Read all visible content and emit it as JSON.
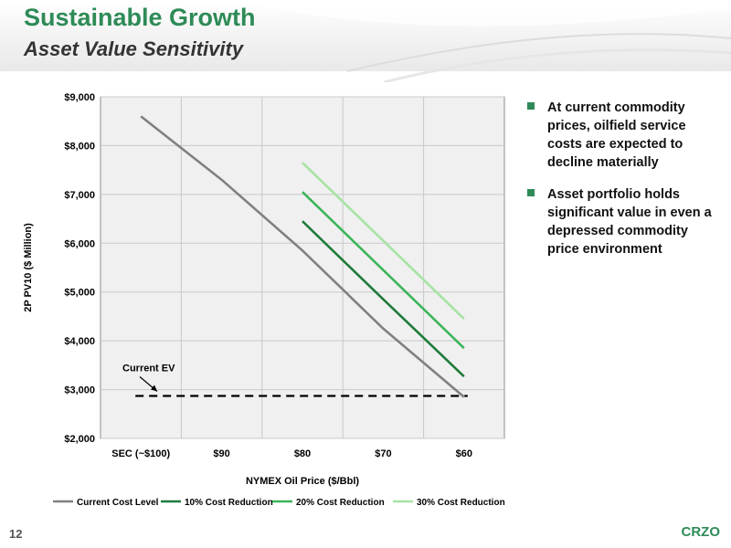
{
  "slide": {
    "title": "Sustainable Growth",
    "subtitle": "Asset Value Sensitivity",
    "page_number": "12",
    "brand": "CRZO",
    "bullets": [
      "At current commodity prices, oilfield service costs are expected to decline materially",
      "Asset portfolio holds significant value in even a depressed commodity price environment"
    ],
    "accent_color": "#2e8b57"
  },
  "chart_data": {
    "type": "line",
    "title": "",
    "xlabel": "NYMEX Oil Price ($/Bbl)",
    "ylabel": "2P PV10 ($ Million)",
    "categories": [
      "SEC (~$100)",
      "$90",
      "$80",
      "$70",
      "$60"
    ],
    "ylim": [
      2000,
      9000
    ],
    "yticks": [
      2000,
      3000,
      4000,
      5000,
      6000,
      7000,
      8000,
      9000
    ],
    "ytick_labels": [
      "$2,000",
      "$3,000",
      "$4,000",
      "$5,000",
      "$6,000",
      "$7,000",
      "$8,000",
      "$9,000"
    ],
    "grid": true,
    "legend_position": "bottom",
    "series": [
      {
        "name": "Current Cost Level",
        "color": "#808080",
        "values": [
          8600,
          7300,
          5850,
          4250,
          2850
        ]
      },
      {
        "name": "10% Cost Reduction",
        "color": "#1e7b3a",
        "values": [
          null,
          null,
          6450,
          4850,
          3270
        ]
      },
      {
        "name": "20% Cost Reduction",
        "color": "#3cb55a",
        "values": [
          null,
          null,
          7050,
          5450,
          3850
        ]
      },
      {
        "name": "30% Cost Reduction",
        "color": "#a6e3a4",
        "values": [
          null,
          null,
          7650,
          6050,
          4450
        ]
      }
    ],
    "reference_line": {
      "value": 2870,
      "style": "dashed",
      "color": "#000000"
    },
    "annotations": [
      {
        "text": "Current EV",
        "points_to_value": 2870
      }
    ]
  }
}
